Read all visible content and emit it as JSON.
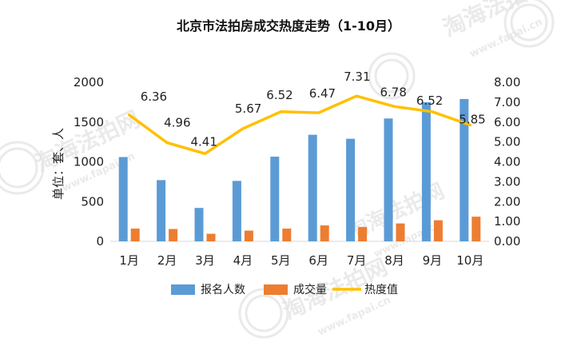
{
  "watermark": {
    "text": "淘海法拍网",
    "url": "www.fapai.cn"
  },
  "colors": {
    "bar_primary": "#5B9BD5",
    "bar_secondary": "#ED7D31",
    "line": "#FFC000",
    "grid": "#d9d9d9",
    "text": "#222222"
  },
  "chart_data": {
    "type": "bar",
    "title": "北京市法拍房成交热度走势（1-10月）",
    "ylabel": "单位：套、人",
    "categories": [
      "1月",
      "2月",
      "3月",
      "4月",
      "5月",
      "6月",
      "7月",
      "8月",
      "9月",
      "10月"
    ],
    "ylim": [
      0,
      2000
    ],
    "yticks": [
      "0",
      "500",
      "1000",
      "1500",
      "2000"
    ],
    "y2lim": [
      0,
      8
    ],
    "y2ticks": [
      "0.00",
      "1.00",
      "2.00",
      "3.00",
      "4.00",
      "5.00",
      "6.00",
      "7.00",
      "8.00"
    ],
    "grid": false,
    "legend_position": "bottom",
    "series": [
      {
        "name": "报名人数",
        "kind": "bar",
        "axis": "left",
        "color": "#5B9BD5",
        "values": [
          1060,
          770,
          420,
          760,
          1065,
          1340,
          1290,
          1545,
          1750,
          1790
        ]
      },
      {
        "name": "成交量",
        "kind": "bar",
        "axis": "left",
        "color": "#ED7D31",
        "values": [
          160,
          155,
          95,
          135,
          160,
          200,
          180,
          225,
          265,
          310
        ]
      },
      {
        "name": "热度值",
        "kind": "line",
        "axis": "right",
        "color": "#FFC000",
        "values": [
          6.36,
          4.96,
          4.41,
          5.67,
          6.52,
          6.47,
          7.31,
          6.78,
          6.52,
          5.85
        ],
        "labels": [
          "6.36",
          "4.96",
          "4.41",
          "5.67",
          "6.52",
          "6.47",
          "7.31",
          "6.78",
          "6.52",
          "5.85"
        ]
      }
    ]
  }
}
